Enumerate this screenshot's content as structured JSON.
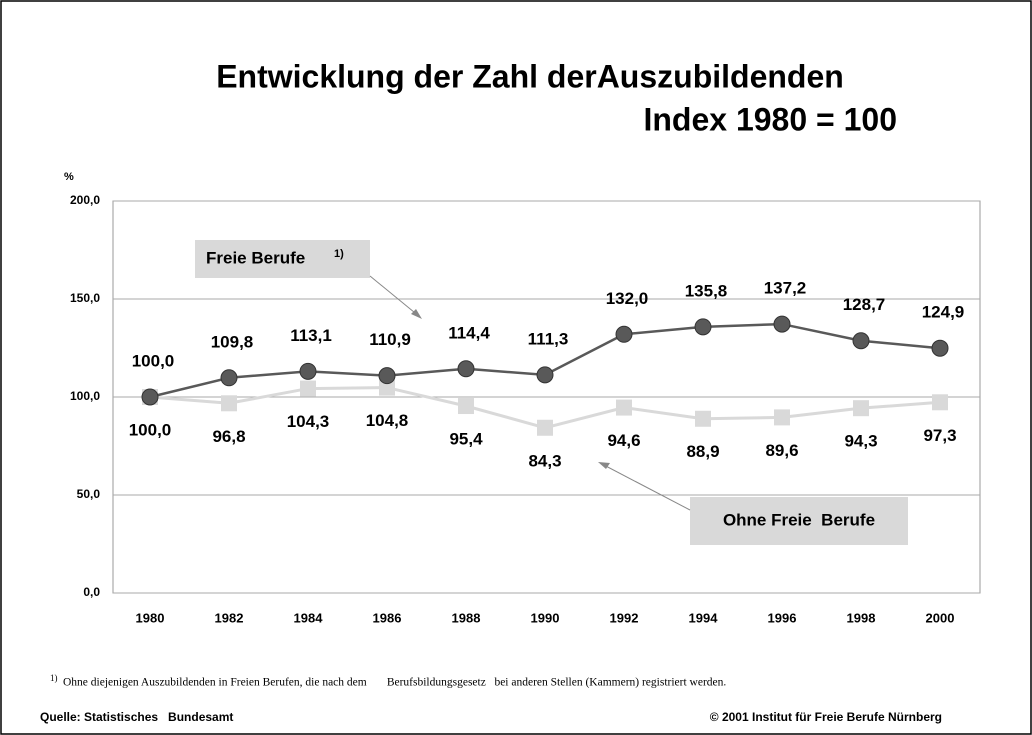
{
  "chart_data": {
    "type": "line",
    "title": "Entwicklung der Zahl derAuszubildenden",
    "subtitle": "Index 1980 = 100",
    "y_axis_label": "%",
    "categories": [
      "1980",
      "1982",
      "1984",
      "1986",
      "1988",
      "1990",
      "1992",
      "1994",
      "1996",
      "1998",
      "2000"
    ],
    "series": [
      {
        "name": "Freie Berufe",
        "legend_note": "1)",
        "color": "#595959",
        "marker": "circle",
        "values": [
          100.0,
          109.8,
          113.1,
          110.9,
          114.4,
          111.3,
          132.0,
          135.8,
          137.2,
          128.7,
          124.9
        ],
        "value_labels": [
          "100,0",
          "109,8",
          "113,1",
          "110,9",
          "114,4",
          "111,3",
          "132,0",
          "135,8",
          "137,2",
          "128,7",
          "124,9"
        ]
      },
      {
        "name": "Ohne Freie  Berufe",
        "color": "#d9d9d9",
        "marker": "square",
        "values": [
          100.0,
          96.8,
          104.3,
          104.8,
          95.4,
          84.3,
          94.6,
          88.9,
          89.6,
          94.3,
          97.3
        ],
        "value_labels": [
          "100,0",
          "96,8",
          "104,3",
          "104,8",
          "95,4",
          "84,3",
          "94,6",
          "88,9",
          "89,6",
          "94,3",
          "97,3"
        ]
      }
    ],
    "ylim": [
      0,
      200
    ],
    "yticks": [
      {
        "value": 0,
        "label": "0,0"
      },
      {
        "value": 50,
        "label": "50,0"
      },
      {
        "value": 100,
        "label": "100,0"
      },
      {
        "value": 150,
        "label": "150,0"
      },
      {
        "value": 200,
        "label": "200,0"
      }
    ],
    "grid": true,
    "footnote": {
      "mark": "1)",
      "text": "Ohne diejenigen Auszubildenden in Freien Berufen, die nach dem       Berufsbildungsgesetz   bei anderen Stellen (Kammern) registriert werden."
    },
    "source": "Quelle: Statistisches   Bundesamt",
    "copyright": "© 2001 Institut für Freie Berufe Nürnberg"
  }
}
